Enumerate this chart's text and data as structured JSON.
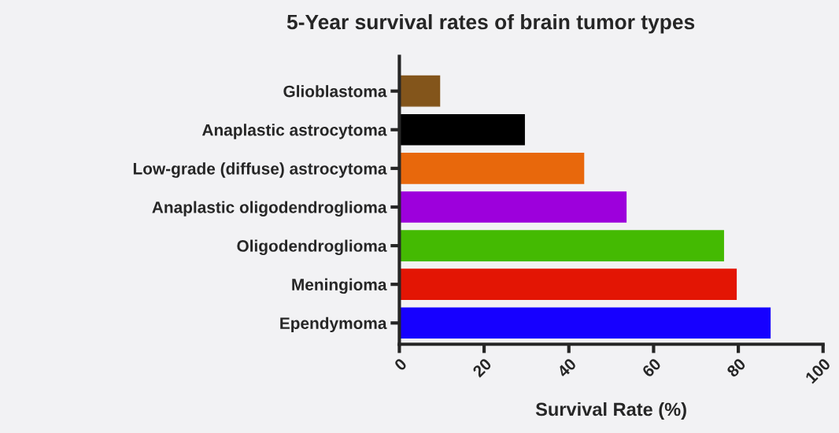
{
  "chart_data": {
    "type": "bar",
    "orientation": "horizontal",
    "title": "5-Year survival rates of brain tumor types",
    "xlabel": "Survival Rate (%)",
    "categories": [
      "Glioblastoma",
      "Anaplastic astrocytoma",
      "Low-grade (diffuse) astrocytoma",
      "Anaplastic oligodendroglioma",
      "Oligodendroglioma",
      "Meningioma",
      "Ependymoma"
    ],
    "values": [
      9.5,
      29.5,
      43.5,
      53.5,
      76.5,
      79.5,
      87.5
    ],
    "colors": [
      "#83551b",
      "#000000",
      "#e8680c",
      "#9d00dc",
      "#44ba02",
      "#e31504",
      "#1600ff"
    ],
    "xlim": [
      0,
      100
    ],
    "xticks": [
      0,
      20,
      40,
      60,
      80,
      100
    ],
    "grid": false,
    "legend": false
  }
}
